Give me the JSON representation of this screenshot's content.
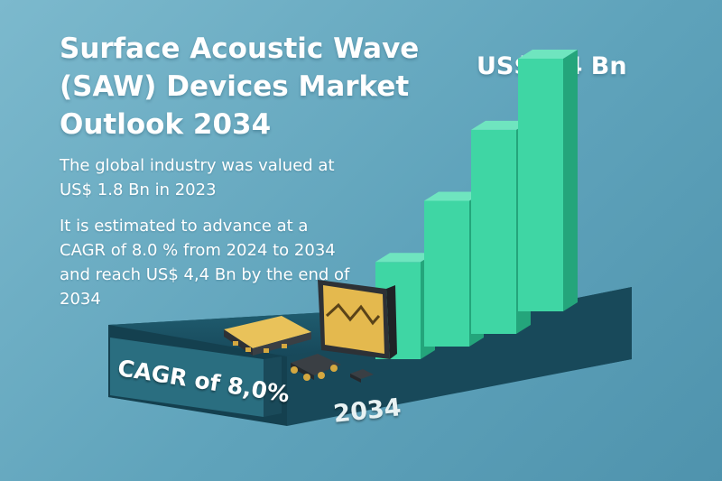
{
  "title": "Surface Acoustic Wave (SAW) Devices Market Outlook 2034",
  "paragraph_1": "The global industry was valued at US$ 1.8 Bn in 2023",
  "paragraph_2": "It is estimated to advance at a CAGR of 8.0 % from 2024 to 2034 and reach US$ 4,4 Bn by the end of 2034",
  "top_value_label": "US$ 4,4 Bn",
  "cagr_label": "CAGR of 8,0%",
  "year_label": "2034",
  "colors": {
    "bar": "#3fd6a4",
    "platform": "#1f5a66",
    "chip_gold": "#e2b84e",
    "chip_dark": "#3a3f44"
  },
  "chart_data": {
    "type": "bar",
    "title": "Surface Acoustic Wave (SAW) Devices Market Outlook 2034",
    "categories": [
      "",
      "",
      "",
      ""
    ],
    "values": [
      1,
      1.5,
      2.1,
      2.6
    ],
    "ylim": [
      0,
      2.6
    ],
    "grid": false,
    "legend": "none",
    "annotations": [
      "US$ 4,4 Bn",
      "CAGR of 8,0%",
      "2034"
    ]
  }
}
